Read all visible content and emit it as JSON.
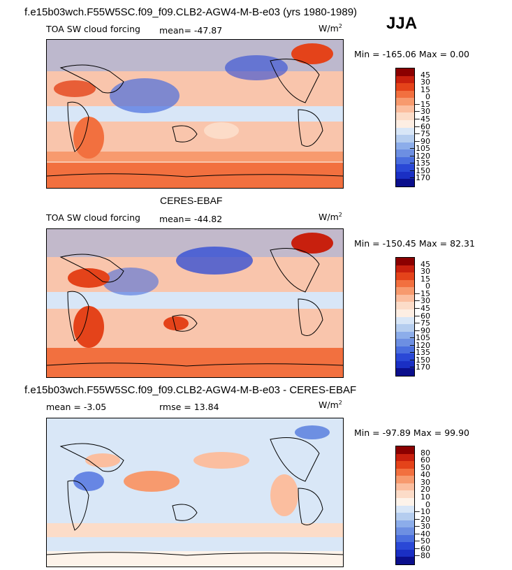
{
  "header": {
    "title": "f.e15b03wch.F55W5SC.f09_f09.CLB2-AGW4-M-B-e03 (yrs 1980-1989)",
    "season": "JJA"
  },
  "panels": [
    {
      "subtitle": "",
      "field": "TOA SW cloud forcing",
      "mean_label": "mean=",
      "mean_value": "-47.87",
      "rmse_label": "",
      "rmse_value": "",
      "units_base": "W/m",
      "units_exp": "2",
      "min_label": "Min =",
      "min_value": "-165.06",
      "max_label": "Max =",
      "max_value": "0.00",
      "colorbar_ticks": [
        "45",
        "30",
        "15",
        "0",
        "−15",
        "−30",
        "−45",
        "−60",
        "−75",
        "−90",
        "−105",
        "−120",
        "−135",
        "−150",
        "−170"
      ],
      "colorbar_colors": [
        "#8b0000",
        "#c8200e",
        "#e4431a",
        "#f2703f",
        "#f79a6e",
        "#fbbe9f",
        "#fcdcc8",
        "#fdeee3",
        "#d8e6f7",
        "#b5cdef",
        "#8cadea",
        "#6d8fe2",
        "#4a6ede",
        "#2a48d6",
        "#1a2fc4",
        "#0b0f8c"
      ],
      "dominant_color": "#f9c5ac"
    },
    {
      "subtitle": "CERES-EBAF",
      "field": "TOA SW cloud forcing",
      "mean_label": "mean=",
      "mean_value": "-44.82",
      "rmse_label": "",
      "rmse_value": "",
      "units_base": "W/m",
      "units_exp": "2",
      "min_label": "Min =",
      "min_value": "-150.45",
      "max_label": "Max =",
      "max_value": "82.31",
      "colorbar_ticks": [
        "45",
        "30",
        "15",
        "0",
        "−15",
        "−30",
        "−45",
        "−60",
        "−75",
        "−90",
        "−105",
        "−120",
        "−135",
        "−150",
        "−170"
      ],
      "colorbar_colors": [
        "#8b0000",
        "#c8200e",
        "#e4431a",
        "#f2703f",
        "#f79a6e",
        "#fbbe9f",
        "#fcdcc8",
        "#fdeee3",
        "#d8e6f7",
        "#b5cdef",
        "#8cadea",
        "#6d8fe2",
        "#4a6ede",
        "#2a48d6",
        "#1a2fc4",
        "#0b0f8c"
      ],
      "dominant_color": "#f9c5ac"
    },
    {
      "subtitle": "f.e15b03wch.F55W5SC.f09_f09.CLB2-AGW4-M-B-e03 - CERES-EBAF",
      "field": "",
      "mean_label": "mean =",
      "mean_value": "-3.05",
      "rmse_label": "rmse =",
      "rmse_value": "13.84",
      "units_base": "W/m",
      "units_exp": "2",
      "min_label": "Min =",
      "min_value": "-97.89",
      "max_label": "Max =",
      "max_value": "99.90",
      "colorbar_ticks": [
        "80",
        "60",
        "50",
        "40",
        "30",
        "20",
        "10",
        "0",
        "−10",
        "−20",
        "−30",
        "−40",
        "−50",
        "−60",
        "−80"
      ],
      "colorbar_colors": [
        "#8b0000",
        "#c8200e",
        "#e4431a",
        "#f2703f",
        "#f79a6e",
        "#fbbe9f",
        "#fcdcc8",
        "#fdf3ea",
        "#d8e6f7",
        "#b5cdef",
        "#8cadea",
        "#6d8fe2",
        "#4a6ede",
        "#2a48d6",
        "#1a2fc4",
        "#0b0f8c"
      ],
      "dominant_color": "#d9e7f7"
    }
  ]
}
